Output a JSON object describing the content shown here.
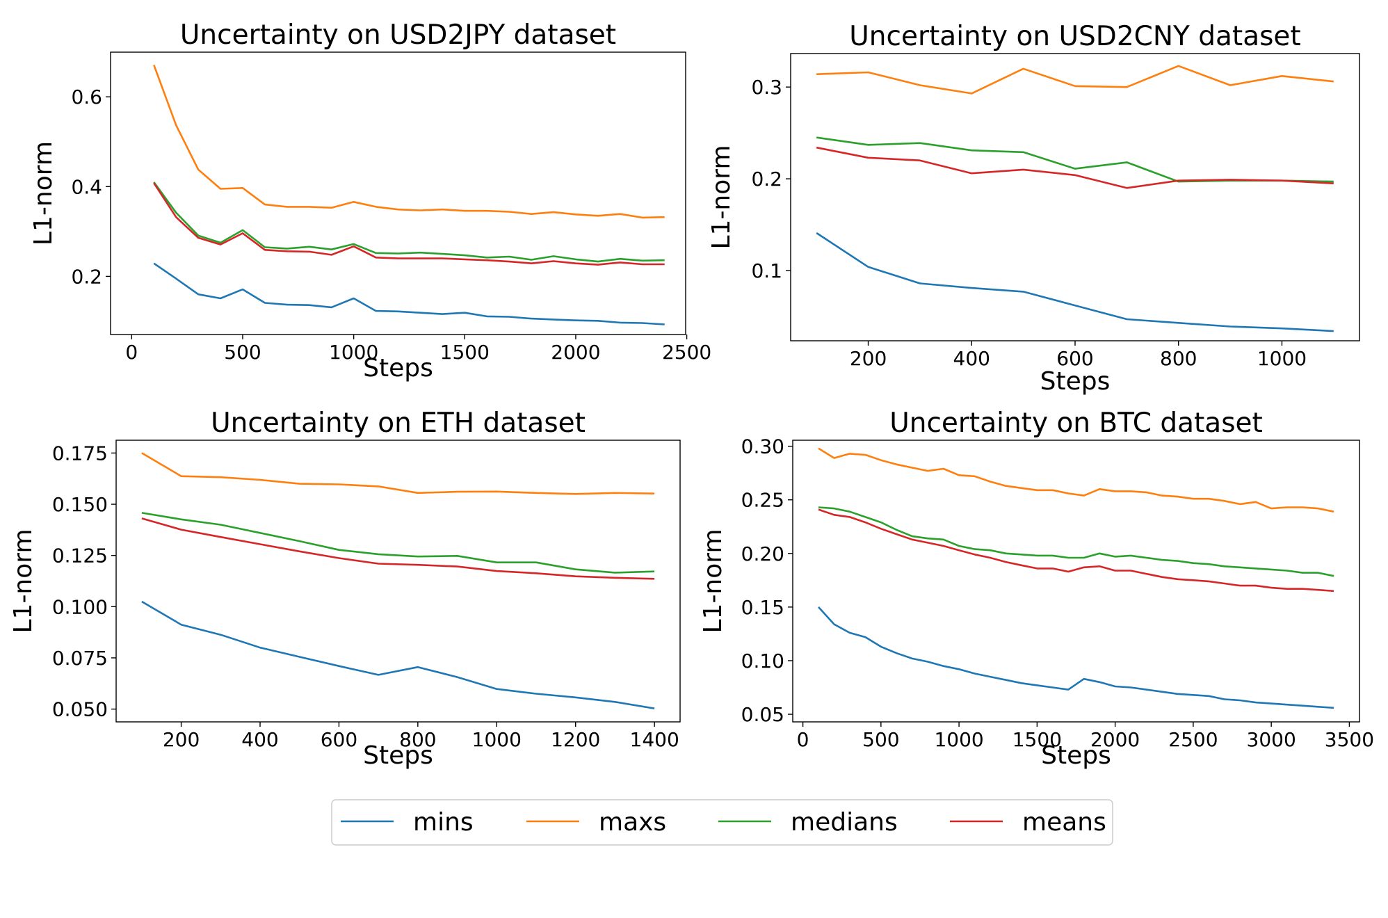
{
  "legend": {
    "items": [
      {
        "name": "mins",
        "color": "#1f77b4"
      },
      {
        "name": "maxs",
        "color": "#ff7f0e"
      },
      {
        "name": "medians",
        "color": "#2ca02c"
      },
      {
        "name": "means",
        "color": "#d62728"
      }
    ],
    "placement": "bottom-center"
  },
  "chart_data": [
    {
      "type": "line",
      "title": "Uncertainty on USD2JPY dataset",
      "xlabel": "Steps",
      "ylabel": "L1-norm",
      "xlim": [
        -95,
        2495
      ],
      "ylim": [
        0.0705,
        0.6995
      ],
      "xticks": [
        0,
        500,
        1000,
        1500,
        2000,
        2500
      ],
      "yticks": [
        0.2,
        0.4,
        0.6
      ],
      "xtick_labels": [
        "0",
        "500",
        "1000",
        "1500",
        "2000",
        "2500"
      ],
      "ytick_labels": [
        "0.2",
        "0.4",
        "0.6"
      ],
      "x": [
        100,
        200,
        300,
        400,
        500,
        600,
        700,
        800,
        900,
        1000,
        1100,
        1200,
        1300,
        1400,
        1500,
        1600,
        1700,
        1800,
        1900,
        2000,
        2100,
        2200,
        2300,
        2400
      ],
      "series": [
        {
          "name": "mins",
          "color": "#1f77b4",
          "values": [
            0.229,
            0.195,
            0.16,
            0.151,
            0.171,
            0.141,
            0.137,
            0.136,
            0.131,
            0.151,
            0.123,
            0.122,
            0.119,
            0.116,
            0.119,
            0.111,
            0.11,
            0.106,
            0.104,
            0.102,
            0.101,
            0.097,
            0.096,
            0.093
          ]
        },
        {
          "name": "maxs",
          "color": "#ff7f0e",
          "values": [
            0.671,
            0.537,
            0.438,
            0.395,
            0.397,
            0.36,
            0.355,
            0.355,
            0.353,
            0.366,
            0.355,
            0.349,
            0.347,
            0.349,
            0.346,
            0.346,
            0.344,
            0.339,
            0.343,
            0.338,
            0.335,
            0.339,
            0.331,
            0.332
          ]
        },
        {
          "name": "medians",
          "color": "#2ca02c",
          "values": [
            0.41,
            0.342,
            0.291,
            0.275,
            0.303,
            0.265,
            0.262,
            0.266,
            0.26,
            0.272,
            0.252,
            0.251,
            0.253,
            0.25,
            0.247,
            0.242,
            0.244,
            0.237,
            0.245,
            0.238,
            0.233,
            0.239,
            0.235,
            0.236
          ]
        },
        {
          "name": "means",
          "color": "#d62728",
          "values": [
            0.408,
            0.332,
            0.286,
            0.271,
            0.296,
            0.259,
            0.256,
            0.255,
            0.248,
            0.267,
            0.242,
            0.24,
            0.24,
            0.24,
            0.238,
            0.236,
            0.233,
            0.229,
            0.234,
            0.229,
            0.226,
            0.231,
            0.227,
            0.227
          ]
        }
      ]
    },
    {
      "type": "line",
      "title": "Uncertainty on USD2CNY dataset",
      "xlabel": "Steps",
      "ylabel": "L1-norm",
      "xlim": [
        50,
        1150
      ],
      "ylim": [
        0.0235,
        0.3365
      ],
      "xticks": [
        200,
        400,
        600,
        800,
        1000
      ],
      "yticks": [
        0.1,
        0.2,
        0.3
      ],
      "xtick_labels": [
        "200",
        "400",
        "600",
        "800",
        "1000"
      ],
      "ytick_labels": [
        "0.1",
        "0.2",
        "0.3"
      ],
      "x": [
        100,
        200,
        300,
        400,
        500,
        600,
        700,
        800,
        900,
        1000,
        1100
      ],
      "series": [
        {
          "name": "mins",
          "color": "#1f77b4",
          "values": [
            0.141,
            0.104,
            0.086,
            0.081,
            0.077,
            0.062,
            0.047,
            0.043,
            0.039,
            0.037,
            0.034
          ]
        },
        {
          "name": "maxs",
          "color": "#ff7f0e",
          "values": [
            0.314,
            0.316,
            0.302,
            0.293,
            0.32,
            0.301,
            0.3,
            0.323,
            0.302,
            0.312,
            0.306
          ]
        },
        {
          "name": "medians",
          "color": "#2ca02c",
          "values": [
            0.245,
            0.237,
            0.239,
            0.231,
            0.229,
            0.211,
            0.218,
            0.197,
            0.198,
            0.198,
            0.197
          ]
        },
        {
          "name": "means",
          "color": "#d62728",
          "values": [
            0.234,
            0.223,
            0.22,
            0.206,
            0.21,
            0.204,
            0.19,
            0.198,
            0.199,
            0.198,
            0.195
          ]
        }
      ]
    },
    {
      "type": "line",
      "title": "Uncertainty on ETH dataset",
      "xlabel": "Steps",
      "ylabel": "L1-norm",
      "xlim": [
        35,
        1465
      ],
      "ylim": [
        0.04375,
        0.18125
      ],
      "xticks": [
        200,
        400,
        600,
        800,
        1000,
        1200,
        1400
      ],
      "yticks": [
        0.05,
        0.075,
        0.1,
        0.125,
        0.15,
        0.175
      ],
      "xtick_labels": [
        "200",
        "400",
        "600",
        "800",
        "1000",
        "1200",
        "1400"
      ],
      "ytick_labels": [
        "0.050",
        "0.075",
        "0.100",
        "0.125",
        "0.150",
        "0.175"
      ],
      "x": [
        100,
        200,
        300,
        400,
        500,
        600,
        700,
        800,
        900,
        1000,
        1100,
        1200,
        1300,
        1400
      ],
      "series": [
        {
          "name": "mins",
          "color": "#1f77b4",
          "values": [
            0.1025,
            0.0912,
            0.0863,
            0.08,
            0.0755,
            0.071,
            0.0667,
            0.0705,
            0.0656,
            0.0598,
            0.0575,
            0.0557,
            0.0535,
            0.0503
          ]
        },
        {
          "name": "maxs",
          "color": "#ff7f0e",
          "values": [
            0.175,
            0.1637,
            0.1632,
            0.1619,
            0.16,
            0.1597,
            0.1587,
            0.1555,
            0.1561,
            0.1562,
            0.1555,
            0.155,
            0.1555,
            0.1552
          ]
        },
        {
          "name": "medians",
          "color": "#2ca02c",
          "values": [
            0.1458,
            0.1426,
            0.14,
            0.136,
            0.132,
            0.1277,
            0.1256,
            0.1245,
            0.1248,
            0.1216,
            0.1216,
            0.1182,
            0.1166,
            0.1172
          ]
        },
        {
          "name": "means",
          "color": "#d62728",
          "values": [
            0.1431,
            0.1376,
            0.134,
            0.1305,
            0.127,
            0.1237,
            0.121,
            0.1204,
            0.1196,
            0.1174,
            0.1163,
            0.1148,
            0.1141,
            0.1136
          ]
        }
      ]
    },
    {
      "type": "line",
      "title": "Uncertainty on BTC dataset",
      "xlabel": "Steps",
      "ylabel": "L1-norm",
      "xlim": [
        -65,
        3565
      ],
      "ylim": [
        0.0429,
        0.3056
      ],
      "xticks": [
        0,
        500,
        1000,
        1500,
        2000,
        2500,
        3000,
        3500
      ],
      "yticks": [
        0.05,
        0.1,
        0.15,
        0.2,
        0.25,
        0.3
      ],
      "xtick_labels": [
        "0",
        "500",
        "1000",
        "1500",
        "2000",
        "2500",
        "3000",
        "3500"
      ],
      "ytick_labels": [
        "0.05",
        "0.10",
        "0.15",
        "0.20",
        "0.25",
        "0.30"
      ],
      "x": [
        100,
        200,
        300,
        400,
        500,
        600,
        700,
        800,
        900,
        1000,
        1100,
        1200,
        1300,
        1400,
        1500,
        1600,
        1700,
        1800,
        1900,
        2000,
        2100,
        2200,
        2300,
        2400,
        2500,
        2600,
        2700,
        2800,
        2900,
        3000,
        3100,
        3200,
        3300,
        3400
      ],
      "series": [
        {
          "name": "mins",
          "color": "#1f77b4",
          "values": [
            0.15,
            0.134,
            0.126,
            0.122,
            0.113,
            0.107,
            0.102,
            0.099,
            0.095,
            0.092,
            0.088,
            0.085,
            0.082,
            0.079,
            0.077,
            0.075,
            0.073,
            0.083,
            0.08,
            0.076,
            0.075,
            0.073,
            0.071,
            0.069,
            0.068,
            0.067,
            0.064,
            0.063,
            0.061,
            0.06,
            0.059,
            0.058,
            0.057,
            0.056
          ]
        },
        {
          "name": "maxs",
          "color": "#ff7f0e",
          "values": [
            0.298,
            0.289,
            0.293,
            0.292,
            0.287,
            0.283,
            0.28,
            0.277,
            0.279,
            0.273,
            0.272,
            0.267,
            0.263,
            0.261,
            0.259,
            0.259,
            0.256,
            0.254,
            0.26,
            0.258,
            0.258,
            0.257,
            0.254,
            0.253,
            0.251,
            0.251,
            0.249,
            0.246,
            0.248,
            0.242,
            0.243,
            0.243,
            0.242,
            0.239
          ]
        },
        {
          "name": "medians",
          "color": "#2ca02c",
          "values": [
            0.243,
            0.242,
            0.239,
            0.234,
            0.229,
            0.222,
            0.216,
            0.214,
            0.213,
            0.207,
            0.204,
            0.203,
            0.2,
            0.199,
            0.198,
            0.198,
            0.196,
            0.196,
            0.2,
            0.197,
            0.198,
            0.196,
            0.194,
            0.193,
            0.191,
            0.19,
            0.188,
            0.187,
            0.186,
            0.185,
            0.184,
            0.182,
            0.182,
            0.179
          ]
        },
        {
          "name": "means",
          "color": "#d62728",
          "values": [
            0.241,
            0.236,
            0.234,
            0.229,
            0.223,
            0.218,
            0.213,
            0.21,
            0.207,
            0.203,
            0.199,
            0.196,
            0.192,
            0.189,
            0.186,
            0.186,
            0.183,
            0.187,
            0.188,
            0.184,
            0.184,
            0.181,
            0.178,
            0.176,
            0.175,
            0.174,
            0.172,
            0.17,
            0.17,
            0.168,
            0.167,
            0.167,
            0.166,
            0.165
          ]
        }
      ]
    }
  ]
}
